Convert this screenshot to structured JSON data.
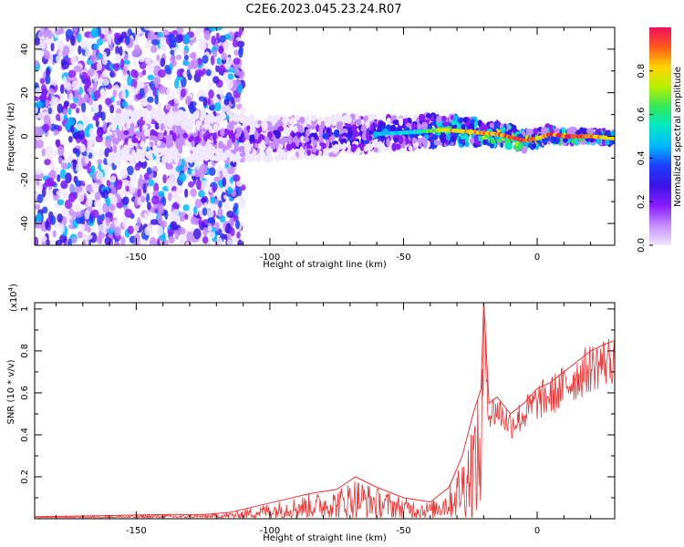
{
  "title": "C2E6.2023.045.23.24.R07",
  "colors": {
    "snr_line": "#ee3333",
    "colormap": [
      "#f0e8ff",
      "#c58cff",
      "#8a1cff",
      "#3a14e6",
      "#1d3cff",
      "#00b8ff",
      "#00e8c8",
      "#31e85a",
      "#b8f000",
      "#ffd400",
      "#ff5a1a",
      "#f01060"
    ]
  },
  "chart_data": [
    {
      "type": "heatmap",
      "xlabel": "Height of straight line (km)",
      "ylabel": "Frequency (Hz)",
      "xlim": [
        -188,
        29
      ],
      "ylim": [
        -50,
        50
      ],
      "xticks": [
        -150,
        -100,
        -50,
        0
      ],
      "yticks": [
        -40,
        -20,
        0,
        20,
        40
      ],
      "colorbar": {
        "label": "Normalized spectral amplitude",
        "range": [
          0,
          1
        ],
        "ticks": [
          0.0,
          0.2,
          0.4,
          0.6,
          0.8
        ]
      },
      "trace": {
        "x": [
          -160,
          -120,
          -100,
          -80,
          -60,
          -45,
          -35,
          -25,
          -15,
          -8,
          -5,
          0,
          5,
          10,
          20,
          29
        ],
        "center_y": [
          0,
          0,
          -1,
          0,
          1,
          2,
          3,
          2,
          1,
          -1,
          -2,
          -1,
          1,
          0,
          0,
          -1
        ],
        "amplitude": [
          0.25,
          0.3,
          0.35,
          0.45,
          0.5,
          0.55,
          0.8,
          0.85,
          0.9,
          0.95,
          0.92,
          0.85,
          0.9,
          0.95,
          0.88,
          0.8
        ]
      },
      "noise_band": {
        "x": [
          -188,
          -110
        ],
        "y": [
          -50,
          50
        ],
        "amplitude": [
          0.05,
          0.5
        ]
      }
    },
    {
      "type": "line",
      "xlabel": "Height of straight line (km)",
      "ylabel": "SNR (10 * v/v)",
      "y_multiplier": "(x10",
      "y_multiplier_exp": "4",
      "y_multiplier_close": ")",
      "xlim": [
        -188,
        29
      ],
      "ylim": [
        0,
        1.03
      ],
      "xticks": [
        -150,
        -100,
        -50,
        0
      ],
      "yticks": [
        0.2,
        0.4,
        0.6,
        0.8,
        1.0
      ],
      "series": [
        {
          "x": [
            -188,
            -160,
            -140,
            -125,
            -115,
            -105,
            -95,
            -85,
            -75,
            -68,
            -60,
            -50,
            -40,
            -33,
            -28,
            -24,
            -21,
            -20,
            -18,
            -15,
            -10,
            -5,
            0,
            5,
            10,
            15,
            20,
            25,
            29
          ],
          "y": [
            0.01,
            0.015,
            0.02,
            0.02,
            0.03,
            0.06,
            0.09,
            0.12,
            0.14,
            0.2,
            0.15,
            0.1,
            0.08,
            0.15,
            0.3,
            0.5,
            0.62,
            1.03,
            0.55,
            0.58,
            0.5,
            0.55,
            0.62,
            0.65,
            0.7,
            0.75,
            0.8,
            0.83,
            0.85
          ]
        }
      ]
    }
  ]
}
